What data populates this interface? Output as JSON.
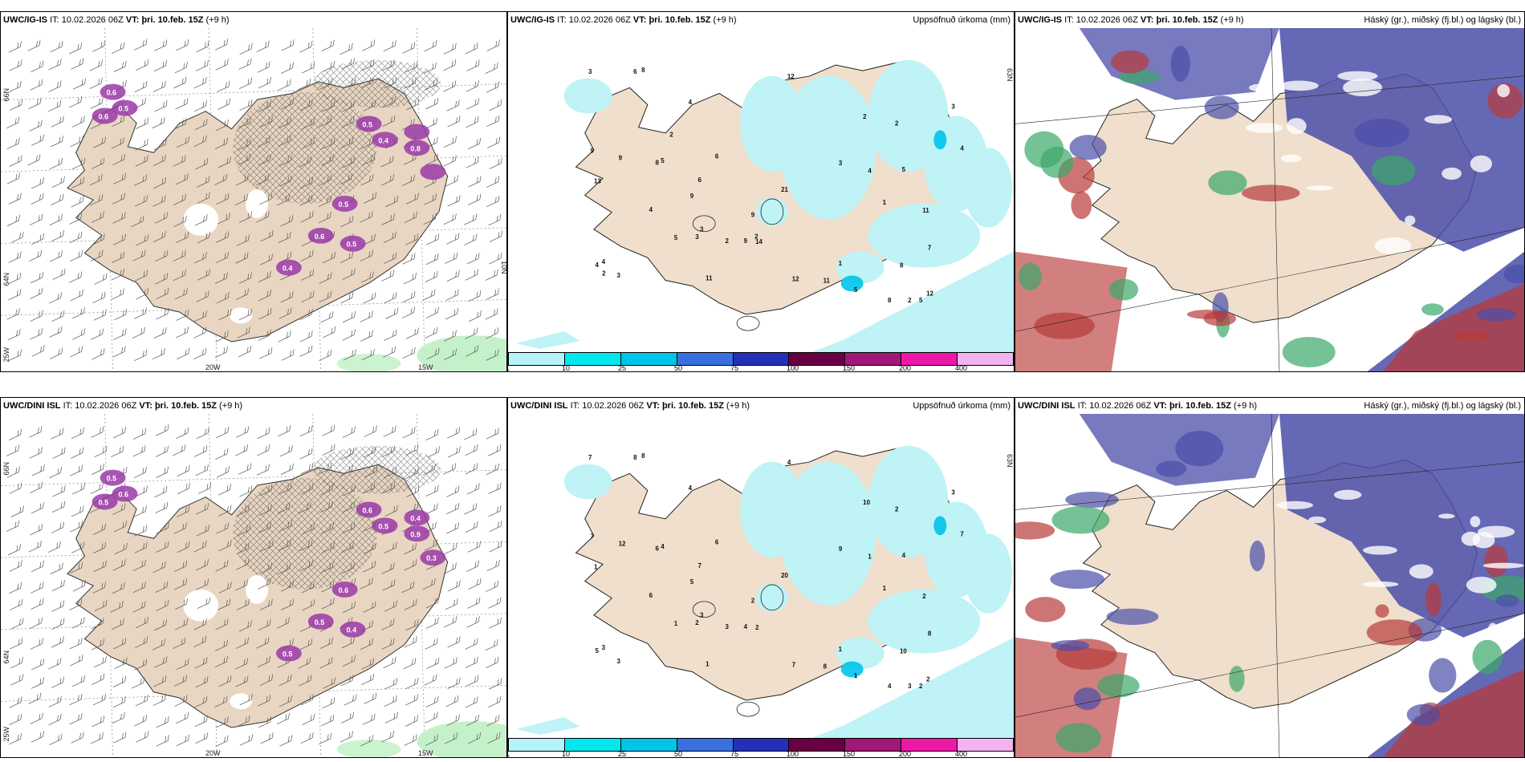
{
  "panels": [
    {
      "id": "igis-wind",
      "model": "UWC/IG-IS",
      "it_prefix": "IT:",
      "it": "10.02.2026 06Z",
      "vt_prefix": "VT:",
      "vt": "þri. 10.feb. 15Z",
      "lead": "(+9 h)",
      "right_title": "",
      "axis_labels": {
        "left_top": "66N",
        "left_mid": "64N",
        "left_bottom": "25W",
        "right_top": "",
        "right_mid": "10N",
        "bottom_left": "20W",
        "bottom_right": "15W"
      }
    },
    {
      "id": "igis-precip",
      "model": "UWC/IG-IS",
      "it_prefix": "IT:",
      "it": "10.02.2026 06Z",
      "vt_prefix": "VT:",
      "vt": "þri. 10.feb. 15Z",
      "lead": "(+9 h)",
      "right_title": "Uppsöfnuð úrkoma (mm)",
      "axis_labels": {
        "left_top": "",
        "left_mid": "",
        "left_bottom": "",
        "right_top": "63N",
        "right_mid": "",
        "bottom_left": "",
        "bottom_right": ""
      },
      "precip_values": [
        "9",
        "8",
        "6",
        "1",
        "5",
        "4",
        "9",
        "9",
        "3",
        "4",
        "5",
        "12",
        "3",
        "8",
        "6",
        "1",
        "21",
        "4",
        "3",
        "6",
        "2",
        "5",
        "11",
        "5",
        "8",
        "3",
        "12",
        "4",
        "2",
        "4",
        "3",
        "2",
        "3",
        "7",
        "2",
        "9",
        "9",
        "8",
        "4",
        "11",
        "13",
        "12",
        "11",
        "5",
        "14",
        "2",
        "2",
        "2"
      ]
    },
    {
      "id": "igis-cloud",
      "model": "UWC/IG-IS",
      "it_prefix": "IT:",
      "it": "10.02.2026 06Z",
      "vt_prefix": "VT:",
      "vt": "þri. 10.feb. 15Z",
      "lead": "(+9 h)",
      "right_title": "Háský (gr.), miðský (fj.bl.) og lágský (bl.)",
      "axis_labels": {
        "left_top": "",
        "left_mid": "",
        "left_bottom": "",
        "right_top": "",
        "right_mid": "",
        "bottom_left": "",
        "bottom_right": ""
      }
    },
    {
      "id": "dini-wind",
      "model": "UWC/DINI ISL",
      "it_prefix": "IT:",
      "it": "10.02.2026 06Z",
      "vt_prefix": "VT:",
      "vt": "þri. 10.feb. 15Z",
      "lead": "(+9 h)",
      "right_title": "",
      "axis_labels": {
        "left_top": "66N",
        "left_mid": "64N",
        "left_bottom": "25W",
        "right_top": "",
        "right_mid": "",
        "bottom_left": "20W",
        "bottom_right": "15W"
      }
    },
    {
      "id": "dini-precip",
      "model": "UWC/DINI ISL",
      "it_prefix": "IT:",
      "it": "10.02.2026 06Z",
      "vt_prefix": "VT:",
      "vt": "þri. 10.feb. 15Z",
      "lead": "(+9 h)",
      "right_title": "Uppsöfnuð úrkoma (mm)",
      "axis_labels": {
        "left_top": "",
        "left_mid": "",
        "left_bottom": "",
        "right_top": "63N",
        "right_mid": "",
        "bottom_left": "",
        "bottom_right": ""
      },
      "precip_values": [
        "2",
        "6",
        "8",
        "1",
        "2",
        "4",
        "4",
        "5",
        "2",
        "1",
        "4",
        "4",
        "7",
        "4",
        "7",
        "1",
        "20",
        "7",
        "3",
        "6",
        "3",
        "4",
        "8",
        "1",
        "10",
        "9",
        "7",
        "3",
        "2",
        "5",
        "3",
        "3",
        "3",
        "8",
        "10",
        "7",
        "12",
        "8",
        "6",
        "1",
        "1",
        "2",
        "2",
        "1",
        "2"
      ]
    },
    {
      "id": "dini-cloud",
      "model": "UWC/DINI ISL",
      "it_prefix": "IT:",
      "it": "10.02.2026 06Z",
      "vt_prefix": "VT:",
      "vt": "þri. 10.feb. 15Z",
      "lead": "(+9 h)",
      "right_title": "Háský (gr.), miðský (fj.bl.) og lágský (bl.)",
      "axis_labels": {
        "left_top": "",
        "left_mid": "",
        "left_bottom": "",
        "right_top": "",
        "right_mid": "",
        "bottom_left": "",
        "bottom_right": ""
      }
    }
  ],
  "wind_labels_top": [
    "0.5",
    "0.6",
    "0.5",
    "0.4",
    "0.8",
    "0.6",
    "0.5",
    "0.4",
    "0.5",
    "0.6"
  ],
  "wind_labels_bottom": [
    "0.6",
    "0.5",
    "0.6",
    "0.5",
    "0.9",
    "0.5",
    "0.4",
    "0.5",
    "0.6",
    "0.5",
    "0.4",
    "0.3"
  ],
  "precip_colorbar": {
    "ticks": [
      "1",
      "10",
      "25",
      "50",
      "75",
      "100",
      "150",
      "200",
      "400"
    ],
    "colors": [
      "#b4f4f8",
      "#00e8ee",
      "#00c4ea",
      "#3a6fe0",
      "#2430b8",
      "#6a0044",
      "#a01878",
      "#ee18a8",
      "#f2b4f0"
    ]
  },
  "colors": {
    "land": "#efdfcc",
    "wind_land": "#e8d6c2",
    "precip_light": "#bff3f6",
    "cloud_high": "#4a4ea8",
    "cloud_mid": "#b83a3a",
    "cloud_low": "#3aa86a"
  }
}
